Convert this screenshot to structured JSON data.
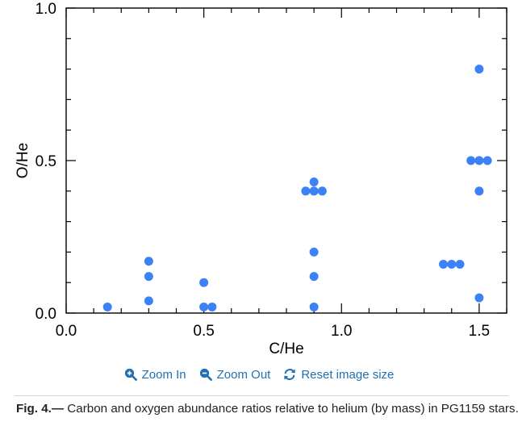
{
  "chart_data": {
    "type": "scatter",
    "xlabel": "C/He",
    "ylabel": "O/He",
    "xlim": [
      0.0,
      1.6
    ],
    "ylim": [
      0.0,
      1.0
    ],
    "x_ticks": [
      {
        "value": 0.0,
        "label": "0.0"
      },
      {
        "value": 0.5,
        "label": "0.5"
      },
      {
        "value": 1.0,
        "label": "1.0"
      },
      {
        "value": 1.5,
        "label": "1.5"
      }
    ],
    "y_ticks": [
      {
        "value": 0.0,
        "label": "0.0"
      },
      {
        "value": 0.5,
        "label": "0.5"
      },
      {
        "value": 1.0,
        "label": "1.0"
      }
    ],
    "x_minor_step": 0.1,
    "y_minor_step": 0.1,
    "grid": false,
    "marker_color": "#3b82f6",
    "points": [
      {
        "x": 0.15,
        "y": 0.02
      },
      {
        "x": 0.3,
        "y": 0.17
      },
      {
        "x": 0.3,
        "y": 0.12
      },
      {
        "x": 0.3,
        "y": 0.04
      },
      {
        "x": 0.5,
        "y": 0.1
      },
      {
        "x": 0.5,
        "y": 0.02
      },
      {
        "x": 0.53,
        "y": 0.02
      },
      {
        "x": 0.87,
        "y": 0.4
      },
      {
        "x": 0.9,
        "y": 0.4
      },
      {
        "x": 0.93,
        "y": 0.4
      },
      {
        "x": 0.9,
        "y": 0.43
      },
      {
        "x": 0.9,
        "y": 0.2
      },
      {
        "x": 0.9,
        "y": 0.12
      },
      {
        "x": 0.9,
        "y": 0.02
      },
      {
        "x": 1.37,
        "y": 0.16
      },
      {
        "x": 1.4,
        "y": 0.16
      },
      {
        "x": 1.43,
        "y": 0.16
      },
      {
        "x": 1.47,
        "y": 0.5
      },
      {
        "x": 1.5,
        "y": 0.5
      },
      {
        "x": 1.53,
        "y": 0.5
      },
      {
        "x": 1.5,
        "y": 0.4
      },
      {
        "x": 1.5,
        "y": 0.8
      },
      {
        "x": 1.5,
        "y": 0.05
      }
    ]
  },
  "toolbar": {
    "zoom_in_label": "Zoom In",
    "zoom_out_label": "Zoom Out",
    "reset_label": "Reset image size",
    "link_color": "#1f6fb2"
  },
  "caption": {
    "figure_label": "Fig. 4.—",
    "text": " Carbon and oxygen abundance ratios relative to helium (by mass) in PG1159 stars."
  }
}
